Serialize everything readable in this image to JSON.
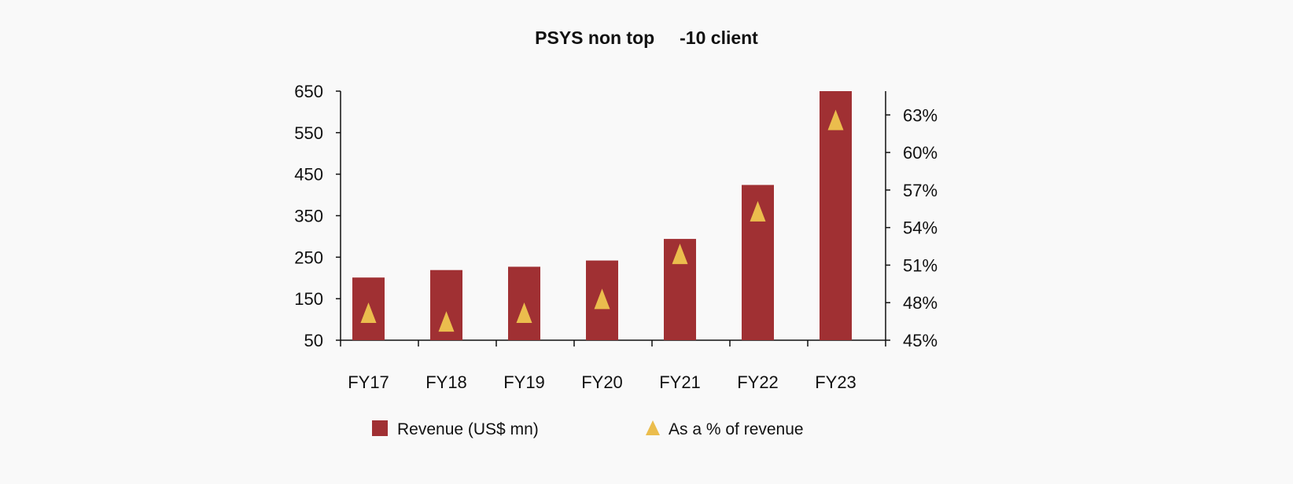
{
  "chart_data": {
    "type": "bar",
    "title": "PSYS non top     -10 client",
    "categories": [
      "FY17",
      "FY18",
      "FY19",
      "FY20",
      "FY21",
      "FY22",
      "FY23"
    ],
    "series": [
      {
        "name": "Revenue (US$ mn)",
        "type": "bar",
        "axis": "left",
        "color": "#a03033",
        "values": [
          201,
          219,
          227,
          242,
          294,
          424,
          650
        ]
      },
      {
        "name": "As a % of revenue",
        "type": "scatter",
        "marker": "triangle",
        "axis": "right",
        "color": "#ebbd4d",
        "values": [
          47.2,
          46.5,
          47.2,
          48.3,
          51.9,
          55.3,
          62.6
        ]
      }
    ],
    "left_axis": {
      "ylim": [
        50,
        650
      ],
      "ticks": [
        50,
        150,
        250,
        350,
        450,
        550,
        650
      ],
      "tick_labels": [
        "50",
        "150",
        "250",
        "350",
        "450",
        "550",
        "650"
      ]
    },
    "right_axis": {
      "ylim": [
        45,
        64.9
      ],
      "ticks": [
        45,
        48,
        51,
        54,
        57,
        60,
        63
      ],
      "tick_labels": [
        "45%",
        "48%",
        "51%",
        "54%",
        "57%",
        "60%",
        "63%"
      ]
    },
    "grid": false,
    "legend_placement": "bottom"
  }
}
